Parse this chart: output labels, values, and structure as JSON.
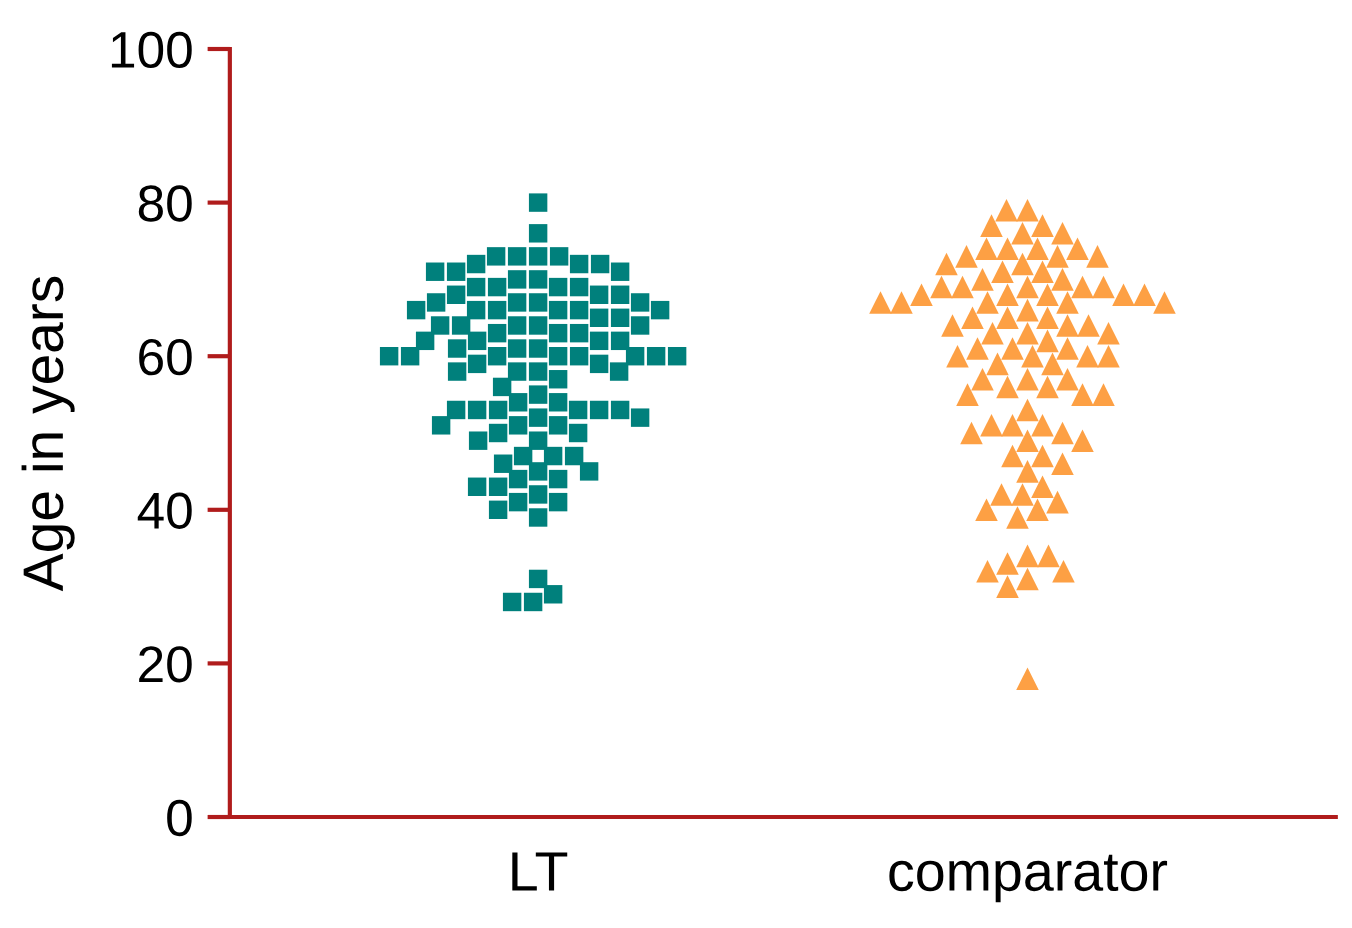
{
  "chart_data": {
    "type": "scatter",
    "ylabel": "Age in years",
    "categories": [
      "LT",
      "comparator"
    ],
    "ylim": [
      0,
      100
    ],
    "yticks": [
      0,
      20,
      40,
      60,
      80,
      100
    ],
    "series": [
      {
        "color": "#00807c",
        "marker": "square",
        "x": [
          "LT",
          "LT",
          "LT",
          "LT",
          "LT",
          "LT",
          "LT",
          "LT",
          "LT",
          "LT",
          "LT",
          "LT",
          "LT",
          "LT",
          "LT",
          "LT",
          "LT",
          "LT",
          "LT",
          "LT",
          "LT",
          "LT",
          "LT",
          "LT",
          "LT",
          "LT",
          "LT",
          "LT",
          "LT",
          "LT",
          "LT",
          "LT",
          "LT",
          "LT",
          "LT",
          "LT",
          "LT",
          "LT",
          "LT",
          "LT",
          "LT",
          "LT",
          "LT",
          "LT",
          "LT",
          "LT",
          "LT",
          "LT",
          "LT",
          "LT",
          "LT",
          "LT",
          "LT",
          "LT",
          "LT",
          "LT",
          "LT",
          "LT",
          "LT",
          "LT",
          "LT",
          "LT",
          "LT",
          "LT",
          "LT",
          "LT",
          "LT",
          "LT",
          "LT",
          "LT",
          "LT",
          "LT",
          "LT",
          "LT",
          "LT",
          "LT",
          "LT",
          "LT",
          "LT",
          "LT",
          "LT",
          "LT",
          "LT",
          "LT",
          "LT",
          "LT",
          "LT",
          "LT",
          "LT",
          "LT",
          "LT",
          "LT",
          "LT",
          "LT",
          "LT",
          "LT",
          "LT",
          "LT",
          "LT",
          "LT",
          "LT"
        ],
        "values": [
          80,
          76,
          73,
          73,
          73,
          73,
          72,
          72,
          72,
          71,
          71,
          71,
          70,
          70,
          69,
          69,
          69,
          69,
          68,
          68,
          68,
          67,
          67,
          67,
          67,
          66,
          66,
          66,
          66,
          66,
          66,
          65,
          65,
          64,
          64,
          64,
          64,
          64,
          63,
          63,
          63,
          62,
          62,
          62,
          62,
          61,
          61,
          61,
          60,
          60,
          60,
          60,
          60,
          60,
          60,
          60,
          59,
          59,
          58,
          58,
          58,
          58,
          57,
          56,
          55,
          54,
          54,
          53,
          53,
          53,
          53,
          53,
          53,
          52,
          52,
          51,
          51,
          51,
          50,
          50,
          49,
          49,
          47,
          47,
          47,
          46,
          45,
          45,
          44,
          44,
          43,
          43,
          42,
          41,
          41,
          40,
          39,
          31,
          29,
          28,
          28
        ]
      },
      {
        "color": "#fda044",
        "marker": "triangle",
        "x": [
          "comparator",
          "comparator",
          "comparator",
          "comparator",
          "comparator",
          "comparator",
          "comparator",
          "comparator",
          "comparator",
          "comparator",
          "comparator",
          "comparator",
          "comparator",
          "comparator",
          "comparator",
          "comparator",
          "comparator",
          "comparator",
          "comparator",
          "comparator",
          "comparator",
          "comparator",
          "comparator",
          "comparator",
          "comparator",
          "comparator",
          "comparator",
          "comparator",
          "comparator",
          "comparator",
          "comparator",
          "comparator",
          "comparator",
          "comparator",
          "comparator",
          "comparator",
          "comparator",
          "comparator",
          "comparator",
          "comparator",
          "comparator",
          "comparator",
          "comparator",
          "comparator",
          "comparator",
          "comparator",
          "comparator",
          "comparator",
          "comparator",
          "comparator",
          "comparator",
          "comparator",
          "comparator",
          "comparator",
          "comparator",
          "comparator",
          "comparator",
          "comparator",
          "comparator",
          "comparator",
          "comparator",
          "comparator",
          "comparator",
          "comparator",
          "comparator",
          "comparator",
          "comparator",
          "comparator",
          "comparator",
          "comparator",
          "comparator",
          "comparator",
          "comparator",
          "comparator",
          "comparator",
          "comparator",
          "comparator",
          "comparator",
          "comparator",
          "comparator",
          "comparator",
          "comparator",
          "comparator",
          "comparator",
          "comparator",
          "comparator",
          "comparator",
          "comparator",
          "comparator"
        ],
        "values": [
          79,
          79,
          77,
          77,
          76,
          76,
          74,
          74,
          74,
          74,
          73,
          73,
          73,
          72,
          72,
          71,
          71,
          70,
          70,
          69,
          69,
          69,
          69,
          69,
          68,
          68,
          68,
          68,
          68,
          67,
          67,
          67,
          67,
          67,
          66,
          65,
          65,
          65,
          64,
          64,
          64,
          63,
          63,
          63,
          62,
          61,
          61,
          61,
          60,
          60,
          60,
          60,
          59,
          59,
          57,
          57,
          57,
          56,
          56,
          55,
          55,
          55,
          53,
          51,
          51,
          51,
          50,
          50,
          49,
          49,
          47,
          47,
          46,
          45,
          43,
          42,
          42,
          41,
          40,
          40,
          39,
          34,
          34,
          33,
          32,
          32,
          31,
          30,
          18
        ]
      }
    ]
  }
}
